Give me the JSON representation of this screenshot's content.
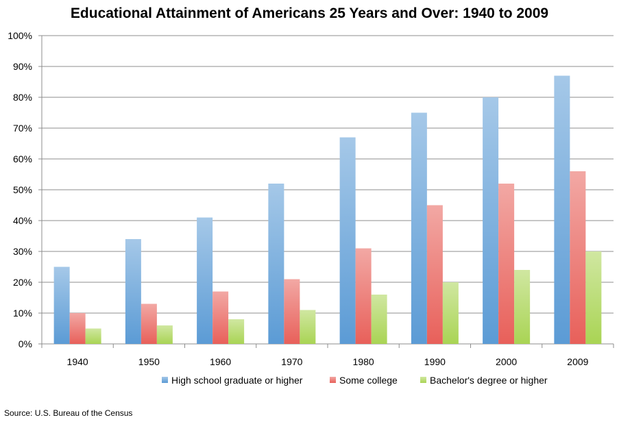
{
  "chart_data": {
    "type": "bar",
    "title": "Educational Attainment of Americans 25 Years and Over: 1940 to 2009",
    "categories": [
      "1940",
      "1950",
      "1960",
      "1970",
      "1980",
      "1990",
      "2000",
      "2009"
    ],
    "series": [
      {
        "name": "High school graduate or higher",
        "values": [
          25,
          34,
          41,
          52,
          67,
          75,
          80,
          87
        ],
        "color": "#5b9bd5"
      },
      {
        "name": "Some college",
        "values": [
          10,
          13,
          17,
          21,
          31,
          45,
          52,
          56
        ],
        "color": "#e8605a"
      },
      {
        "name": "Bachelor's degree or higher",
        "values": [
          5,
          6,
          8,
          11,
          16,
          20,
          24,
          30
        ],
        "color": "#a9d454"
      }
    ],
    "ylim": [
      0,
      100
    ],
    "yticks": [
      "0%",
      "10%",
      "20%",
      "30%",
      "40%",
      "50%",
      "60%",
      "70%",
      "80%",
      "90%",
      "100%"
    ],
    "grid": true,
    "legend_position": "bottom"
  },
  "source_note": "Source: U.S. Bureau of the Census"
}
